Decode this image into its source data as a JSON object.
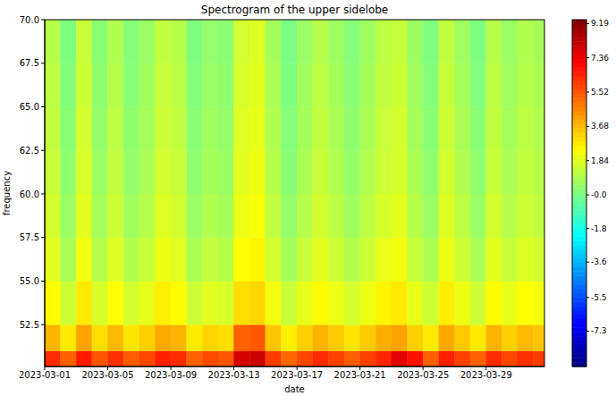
{
  "chart_data": {
    "type": "heatmap",
    "title": "Spectrogram of the upper sidelobe",
    "x_label": "date",
    "y_label": "frequency",
    "xlim": [
      0,
      31.7
    ],
    "xticks": [
      {
        "value": 0,
        "label": "2023-03-01"
      },
      {
        "value": 4,
        "label": "2023-03-05"
      },
      {
        "value": 8,
        "label": "2023-03-09"
      },
      {
        "value": 12,
        "label": "2023-03-13"
      },
      {
        "value": 16,
        "label": "2023-03-17"
      },
      {
        "value": 20,
        "label": "2023-03-21"
      },
      {
        "value": 24,
        "label": "2023-03-25"
      },
      {
        "value": 28,
        "label": "2023-03-29"
      }
    ],
    "ylim": [
      50.1,
      70
    ],
    "yticks": [
      52.5,
      {
        "value": 55,
        "label": "55.0"
      },
      57.5,
      {
        "value": 60,
        "label": "60.0"
      },
      62.5,
      {
        "value": 65,
        "label": "65.0"
      },
      67.5,
      {
        "value": 70,
        "label": "70.0"
      }
    ],
    "x_edges": [
      0,
      1,
      2,
      3,
      4,
      5,
      6,
      7,
      8,
      9,
      10,
      11,
      12,
      13,
      14,
      15,
      16,
      17,
      18,
      19,
      20,
      21,
      22,
      23,
      24,
      25,
      26,
      27,
      28,
      29,
      30,
      31,
      31.7
    ],
    "y_edges": [
      50.1,
      51,
      52.5,
      55,
      57.5,
      60,
      62.5,
      65,
      67.5,
      70
    ],
    "cells": [
      [
        6.3,
        5.3,
        6.6,
        5.5,
        6.2,
        5.4,
        5.8,
        6.5,
        6.3,
        5.3,
        5.7,
        5.5,
        7.8,
        8.0,
        6.0,
        5.2,
        5.8,
        6.3,
        5.9,
        5.4,
        5.9,
        6.4,
        7.6,
        6.8,
        5.3,
        6.5,
        5.9,
        5.3,
        6.3,
        5.8,
        6.2,
        6.0
      ],
      [
        3.8,
        2.8,
        4.1,
        3.0,
        3.7,
        2.9,
        3.3,
        4.0,
        3.8,
        2.8,
        3.2,
        3.0,
        5.3,
        5.5,
        3.5,
        2.7,
        3.3,
        3.8,
        3.4,
        2.9,
        3.4,
        3.9,
        4.1,
        3.3,
        2.8,
        4.0,
        3.4,
        2.8,
        3.8,
        3.3,
        3.7,
        3.5
      ],
      [
        2.5,
        1.5,
        2.8,
        1.7,
        2.4,
        1.6,
        2.0,
        2.7,
        2.5,
        1.5,
        1.9,
        1.7,
        3.0,
        3.2,
        2.2,
        1.4,
        2.0,
        2.5,
        2.1,
        1.6,
        2.1,
        2.6,
        2.8,
        2.0,
        1.5,
        2.7,
        2.1,
        1.5,
        2.5,
        2.0,
        2.4,
        2.2
      ],
      [
        1.9,
        0.9,
        2.2,
        1.1,
        1.8,
        1.0,
        1.4,
        2.1,
        1.9,
        0.9,
        1.3,
        1.1,
        2.4,
        2.6,
        1.6,
        0.8,
        1.4,
        1.9,
        1.5,
        1.0,
        1.5,
        2.0,
        2.2,
        1.4,
        0.9,
        2.1,
        1.5,
        0.9,
        1.9,
        1.4,
        1.8,
        1.6
      ],
      [
        1.6,
        0.6,
        1.9,
        0.8,
        1.5,
        0.7,
        1.1,
        1.8,
        1.6,
        0.6,
        1.0,
        0.8,
        2.1,
        2.3,
        1.3,
        0.5,
        1.1,
        1.6,
        1.2,
        0.7,
        1.2,
        1.7,
        1.9,
        1.1,
        0.6,
        1.8,
        1.2,
        0.6,
        1.6,
        1.1,
        1.5,
        1.3
      ],
      [
        1.4,
        0.4,
        1.7,
        0.6,
        1.3,
        0.5,
        0.9,
        1.6,
        1.4,
        0.4,
        0.8,
        0.6,
        1.9,
        2.1,
        1.1,
        0.3,
        0.9,
        1.4,
        1.0,
        0.5,
        1.0,
        1.5,
        1.7,
        0.9,
        0.4,
        1.6,
        1.0,
        0.4,
        1.4,
        0.9,
        1.3,
        1.1
      ],
      [
        1.3,
        0.3,
        1.6,
        0.5,
        1.2,
        0.4,
        0.8,
        1.5,
        1.3,
        0.3,
        0.7,
        0.5,
        1.8,
        2.0,
        1.0,
        0.2,
        0.8,
        1.3,
        0.9,
        0.4,
        0.9,
        1.4,
        1.6,
        0.8,
        0.3,
        1.5,
        0.9,
        0.3,
        1.3,
        0.8,
        1.2,
        1.0
      ],
      [
        1.2,
        0.2,
        1.5,
        0.4,
        1.1,
        0.3,
        0.7,
        1.4,
        1.2,
        0.2,
        0.6,
        0.4,
        1.7,
        1.9,
        0.9,
        0.1,
        0.7,
        1.2,
        0.8,
        0.3,
        0.8,
        1.3,
        1.5,
        0.7,
        0.2,
        1.4,
        0.8,
        0.2,
        1.2,
        0.7,
        1.1,
        0.9
      ],
      [
        1.1,
        0.1,
        1.4,
        0.3,
        1.0,
        0.2,
        0.6,
        1.3,
        1.1,
        0.1,
        0.5,
        0.3,
        1.6,
        1.8,
        0.8,
        0.0,
        0.6,
        1.1,
        0.7,
        0.2,
        0.7,
        1.2,
        1.4,
        0.6,
        0.1,
        1.3,
        0.7,
        0.1,
        1.1,
        0.6,
        1.0,
        0.8
      ]
    ],
    "colorbar": {
      "range": [
        -9.2,
        9.4
      ],
      "ticks": [
        9.19,
        7.36,
        5.52,
        3.68,
        1.84,
        {
          "value": 0,
          "label": "-0.0"
        },
        -1.8,
        -3.6,
        -5.5,
        -7.3
      ]
    }
  }
}
